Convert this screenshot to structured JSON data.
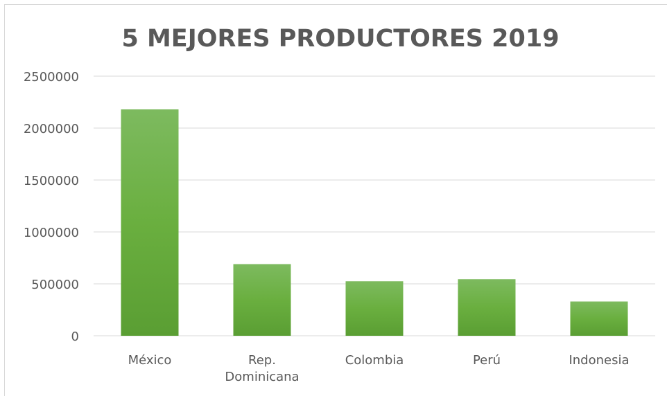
{
  "chart_data": {
    "type": "bar",
    "title": "5 MEJORES PRODUCTORES 2019",
    "xlabel": "",
    "ylabel": "",
    "categories": [
      "México",
      "Rep. Dominicana",
      "Colombia",
      "Perú",
      "Indonesia"
    ],
    "category_lines": [
      [
        "México"
      ],
      [
        "Rep.",
        "Dominicana"
      ],
      [
        "Colombia"
      ],
      [
        "Perú"
      ],
      [
        "Indonesia"
      ]
    ],
    "values": [
      2180000,
      690000,
      525000,
      545000,
      330000
    ],
    "ylim": [
      0,
      2500000
    ],
    "yticks": [
      0,
      500000,
      1000000,
      1500000,
      2000000,
      2500000
    ],
    "ytick_labels": [
      "0",
      "500000",
      "1000000",
      "1500000",
      "2000000",
      "2500000"
    ],
    "grid": true,
    "legend": "none",
    "colors": {
      "bar_top": "#7dba5f",
      "bar_mid": "#6aaf3f",
      "bar_bottom": "#5a9e33",
      "grid": "#d9d9d9",
      "text": "#595959"
    }
  }
}
